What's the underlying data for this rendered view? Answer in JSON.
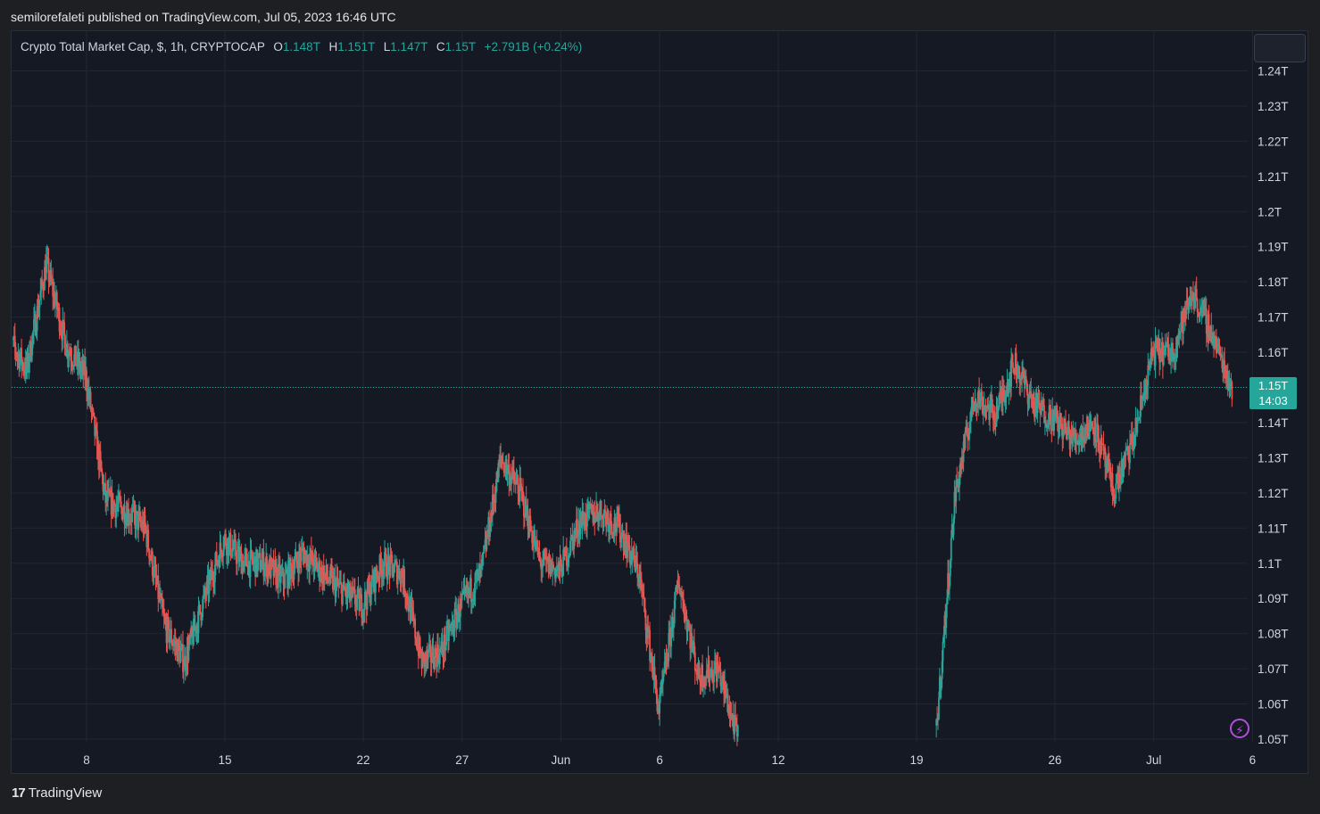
{
  "attribution": "semilorefaleti published on TradingView.com, Jul 05, 2023 16:46 UTC",
  "legend": {
    "symbol": "Crypto Total Market Cap, $, 1h, CRYPTOCAP",
    "o_label": "O",
    "o_value": "1.148T",
    "h_label": "H",
    "h_value": "1.151T",
    "l_label": "L",
    "l_value": "1.147T",
    "c_label": "C",
    "c_value": "1.15T",
    "change": "+2.791B (+0.24%)"
  },
  "last_price": {
    "value": "1.15T",
    "countdown": "14:03"
  },
  "footer": {
    "brand": "TradingView",
    "logo_text": "17"
  },
  "colors": {
    "up": "#26a69a",
    "down": "#ef5350",
    "grid": "#232632",
    "axis_text": "#d1d4dc",
    "background": "#151924"
  },
  "chart_data": {
    "type": "candlestick",
    "title": "Crypto Total Market Cap, $, 1h, CRYPTOCAP",
    "y_unit": "T",
    "ylim": [
      1.05,
      1.25
    ],
    "y_ticks": [
      "1.24T",
      "1.23T",
      "1.22T",
      "1.21T",
      "1.2T",
      "1.19T",
      "1.18T",
      "1.17T",
      "1.16T",
      "1.15T",
      "1.14T",
      "1.13T",
      "1.12T",
      "1.11T",
      "1.1T",
      "1.09T",
      "1.08T",
      "1.07T",
      "1.06T",
      "1.05T"
    ],
    "x_ticks": [
      "8",
      "15",
      "22",
      "27",
      "Jun",
      "6",
      "12",
      "19",
      "26",
      "Jul",
      "6"
    ],
    "x_dates": [
      "2023-05-08",
      "2023-05-15",
      "2023-05-22",
      "2023-05-27",
      "2023-06-01",
      "2023-06-06",
      "2023-06-12",
      "2023-06-19",
      "2023-06-26",
      "2023-07-01",
      "2023-07-06"
    ],
    "trend": {
      "dates": [
        "2023-05-04",
        "2023-05-05",
        "2023-05-06",
        "2023-05-07",
        "2023-05-08",
        "2023-05-09",
        "2023-05-10",
        "2023-05-11",
        "2023-05-12",
        "2023-05-13",
        "2023-05-14",
        "2023-05-15",
        "2023-05-16",
        "2023-05-17",
        "2023-05-18",
        "2023-05-19",
        "2023-05-20",
        "2023-05-21",
        "2023-05-22",
        "2023-05-23",
        "2023-05-24",
        "2023-05-25",
        "2023-05-26",
        "2023-05-27",
        "2023-05-28",
        "2023-05-29",
        "2023-05-30",
        "2023-05-31",
        "2023-06-01",
        "2023-06-02",
        "2023-06-03",
        "2023-06-04",
        "2023-06-05",
        "2023-06-06",
        "2023-06-07",
        "2023-06-08",
        "2023-06-09",
        "2023-06-10",
        "2023-06-20",
        "2023-06-21",
        "2023-06-22",
        "2023-06-23",
        "2023-06-24",
        "2023-06-25",
        "2023-06-26",
        "2023-06-27",
        "2023-06-28",
        "2023-06-29",
        "2023-06-30",
        "2023-07-01",
        "2023-07-02",
        "2023-07-03",
        "2023-07-04",
        "2023-07-05"
      ],
      "close": [
        1.165,
        1.155,
        1.185,
        1.162,
        1.153,
        1.118,
        1.115,
        1.11,
        1.082,
        1.072,
        1.09,
        1.107,
        1.1,
        1.1,
        1.095,
        1.103,
        1.097,
        1.092,
        1.088,
        1.1,
        1.097,
        1.072,
        1.075,
        1.088,
        1.097,
        1.13,
        1.12,
        1.1,
        1.098,
        1.112,
        1.115,
        1.11,
        1.097,
        1.058,
        1.095,
        1.068,
        1.07,
        1.05,
        1.05,
        1.12,
        1.148,
        1.142,
        1.157,
        1.145,
        1.141,
        1.135,
        1.14,
        1.12,
        1.135,
        1.16,
        1.16,
        1.177,
        1.165,
        1.15
      ]
    }
  }
}
